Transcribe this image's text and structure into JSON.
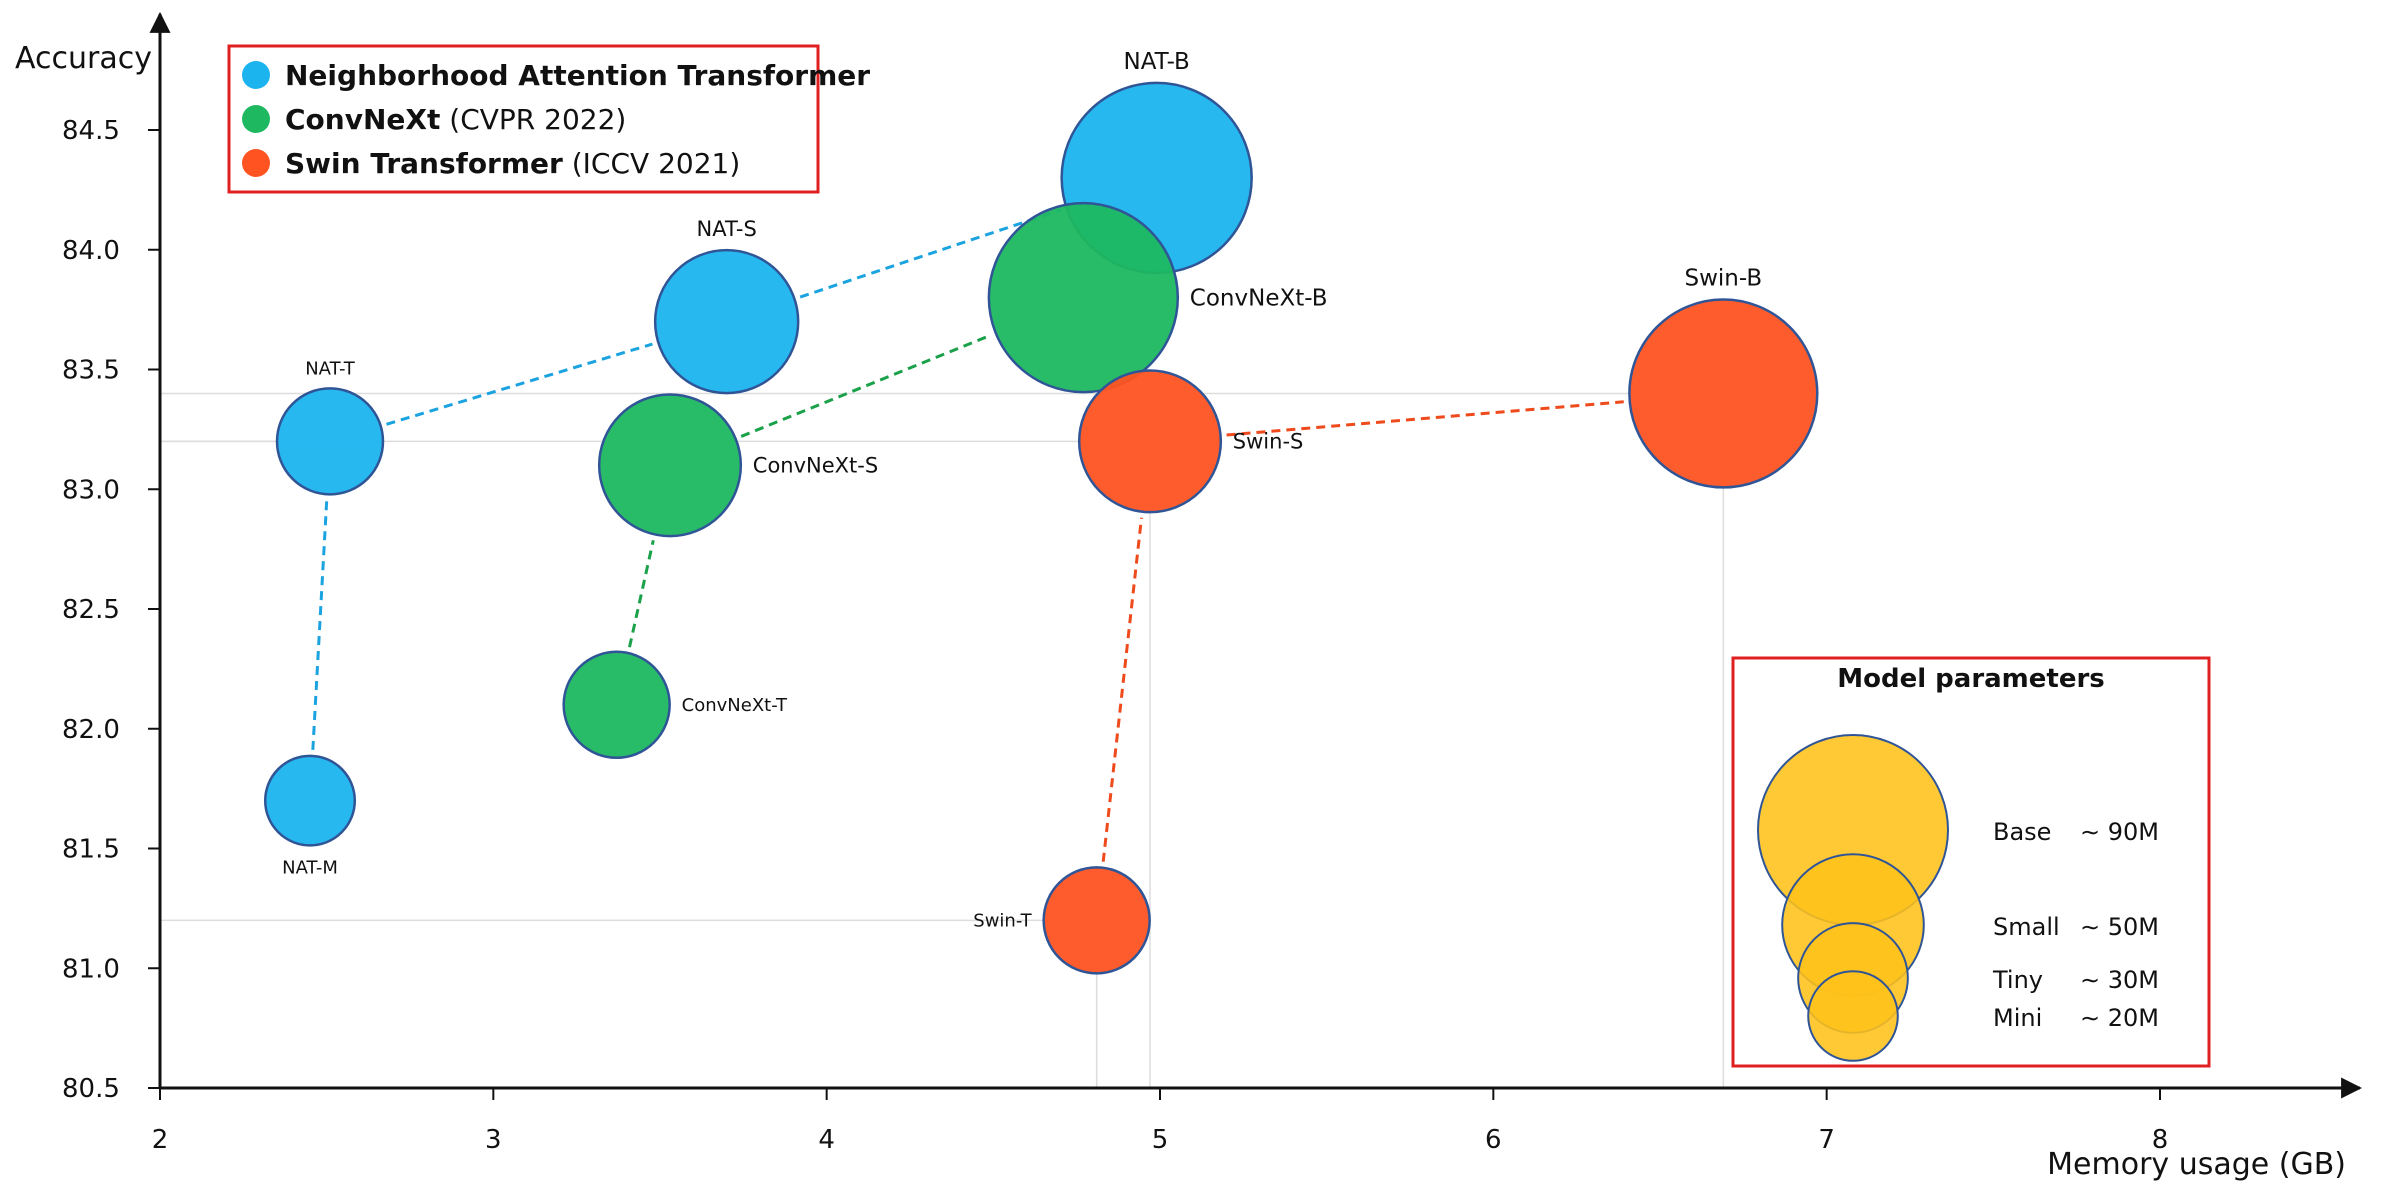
{
  "chart_data": {
    "type": "scatter",
    "subtype": "bubble",
    "xlabel": "Memory usage (GB)",
    "ylabel": "Accuracy",
    "xlim": [
      2,
      9.25
    ],
    "ylim": [
      80.5,
      84.5
    ],
    "x_ticks": [
      2,
      3,
      4,
      5,
      6,
      7,
      8
    ],
    "x_tick_labels": [
      "2",
      "3",
      "4",
      "5",
      "6",
      "7",
      "8"
    ],
    "y_ticks": [
      80.5,
      81.0,
      81.5,
      82.0,
      82.5,
      83.0,
      83.5,
      84.0,
      84.5
    ],
    "y_tick_labels": [
      "80.5",
      "81.0",
      "81.5",
      "82.0",
      "82.5",
      "83.0",
      "83.5",
      "84.0",
      "84.5"
    ],
    "grid": false,
    "legend_position": "top-left",
    "series": [
      {
        "name": "Neighborhood Attention Transformer",
        "legend_bold": "Neighborhood Attention Transformer",
        "legend_venue": "",
        "color": "#1bb4ef",
        "line_color": "#1ba3e0",
        "points": [
          {
            "label": "NAT-M",
            "x": 2.45,
            "y": 81.7,
            "params_m": 20
          },
          {
            "label": "NAT-T",
            "x": 2.51,
            "y": 83.2,
            "params_m": 28
          },
          {
            "label": "NAT-S",
            "x": 3.7,
            "y": 83.7,
            "params_m": 51
          },
          {
            "label": "NAT-B",
            "x": 4.99,
            "y": 84.3,
            "params_m": 90
          }
        ]
      },
      {
        "name": "ConvNeXt (CVPR 2022)",
        "legend_bold": "ConvNeXt",
        "legend_venue": "(CVPR 2022)",
        "color": "#1db860",
        "line_color": "#1aa14a",
        "points": [
          {
            "label": "ConvNeXt-T",
            "x": 3.37,
            "y": 82.1,
            "params_m": 28
          },
          {
            "label": "ConvNeXt-S",
            "x": 3.53,
            "y": 83.1,
            "params_m": 50
          },
          {
            "label": "ConvNeXt-B",
            "x": 4.77,
            "y": 83.8,
            "params_m": 89
          }
        ]
      },
      {
        "name": "Swin Transformer (ICCV 2021)",
        "legend_bold": "Swin Transformer",
        "legend_venue": "(ICCV 2021)",
        "color": "#ff5322",
        "line_color": "#ee4a1c",
        "points": [
          {
            "label": "Swin-T",
            "x": 4.81,
            "y": 81.2,
            "params_m": 28
          },
          {
            "label": "Swin-S",
            "x": 4.97,
            "y": 83.2,
            "params_m": 50
          },
          {
            "label": "Swin-B",
            "x": 6.69,
            "y": 83.4,
            "params_m": 88
          }
        ]
      }
    ],
    "size_legend": {
      "title": "Model parameters",
      "color": "#ffc21a",
      "items": [
        {
          "name": "Base",
          "value": "∼ 90M",
          "params_m": 90
        },
        {
          "name": "Small",
          "value": "∼ 50M",
          "params_m": 50
        },
        {
          "name": "Tiny",
          "value": "∼ 30M",
          "params_m": 30
        },
        {
          "name": "Mini",
          "value": "∼ 20M",
          "params_m": 20
        }
      ]
    },
    "colors": {
      "bubble_stroke": "#2f5597",
      "legend_box": "#e02020",
      "axis": "#111111",
      "guide": "#dddddd"
    }
  }
}
